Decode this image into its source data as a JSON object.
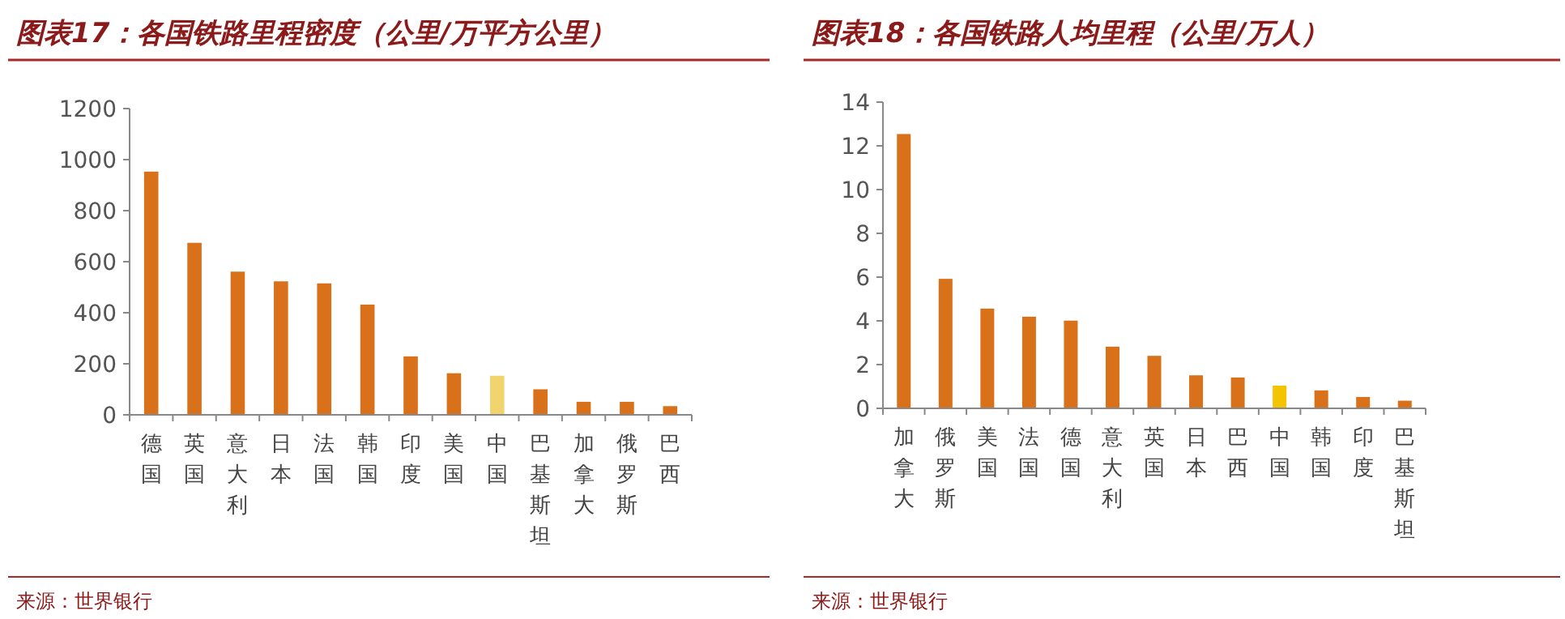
{
  "chart_data": [
    {
      "type": "bar",
      "title": "图表17：各国铁路里程密度（公里/万平方公里）",
      "categories": [
        "德国",
        "英国",
        "意大利",
        "日本",
        "法国",
        "韩国",
        "印度",
        "美国",
        "中国",
        "巴基斯坦",
        "加拿大",
        "俄罗斯",
        "巴西"
      ],
      "values": [
        953,
        674,
        561,
        523,
        515,
        432,
        229,
        163,
        153,
        100,
        51,
        51,
        34
      ],
      "colors": [
        "#d9701a",
        "#d9701a",
        "#d9701a",
        "#d9701a",
        "#d9701a",
        "#d9701a",
        "#d9701a",
        "#d9701a",
        "#f2d46e",
        "#d9701a",
        "#d9701a",
        "#d9701a",
        "#d9701a"
      ],
      "ylim": [
        0,
        1200
      ],
      "yticks": [
        0,
        200,
        400,
        600,
        800,
        1000,
        1200
      ],
      "annotations": [
        "来源：世界银行"
      ]
    },
    {
      "type": "bar",
      "title": "图表18：各国铁路人均里程（公里/万人）",
      "categories": [
        "加拿大",
        "俄罗斯",
        "美国",
        "法国",
        "德国",
        "意大利",
        "英国",
        "日本",
        "巴西",
        "中国",
        "韩国",
        "印度",
        "巴基斯坦"
      ],
      "values": [
        12.54,
        5.92,
        4.56,
        4.19,
        4.01,
        2.82,
        2.4,
        1.51,
        1.41,
        1.04,
        0.82,
        0.52,
        0.35
      ],
      "colors": [
        "#d9701a",
        "#d9701a",
        "#d9701a",
        "#d9701a",
        "#d9701a",
        "#d9701a",
        "#d9701a",
        "#d9701a",
        "#d9701a",
        "#f5c400",
        "#d9701a",
        "#d9701a",
        "#d9701a"
      ],
      "ylim": [
        0,
        14
      ],
      "yticks": [
        0,
        2,
        4,
        6,
        8,
        10,
        12,
        14
      ],
      "annotations": [
        "来源：世界银行"
      ]
    }
  ]
}
